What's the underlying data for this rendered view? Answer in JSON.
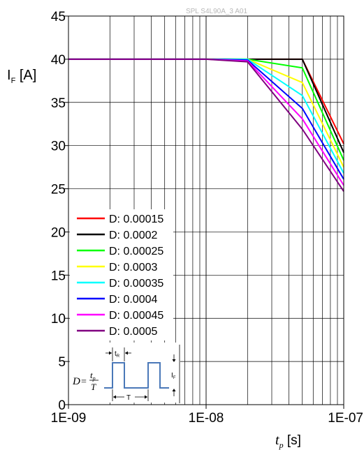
{
  "watermark": "SPL S4L90A_3 A01",
  "chart_data": {
    "type": "line",
    "xscale": "log",
    "xlim": [
      1e-09,
      1e-07
    ],
    "ylim": [
      0,
      45
    ],
    "grid": true,
    "x_tick_labels": [
      "1E-09",
      "1E-08",
      "1E-07"
    ],
    "x_tick_values": [
      1e-09,
      1e-08,
      1e-07
    ],
    "y_ticks": [
      0,
      5,
      10,
      15,
      20,
      25,
      30,
      35,
      40,
      45
    ],
    "ylabel": {
      "main": "I",
      "sub": "F",
      "unit": " [A]"
    },
    "xlabel": {
      "main": "t",
      "sub": "p",
      "unit": " [s]"
    },
    "legend_position": "left",
    "x": [
      1e-09,
      1e-08,
      2e-08,
      5e-08,
      1e-07
    ],
    "series": [
      {
        "name": "D: 0.00015",
        "color": "#ff0000",
        "values": [
          40,
          40,
          40,
          40.0,
          30.2
        ]
      },
      {
        "name": "D: 0.0002",
        "color": "#000000",
        "values": [
          40,
          40,
          40,
          40.0,
          29.2
        ]
      },
      {
        "name": "D: 0.00025",
        "color": "#00ff00",
        "values": [
          40,
          40,
          40,
          39.0,
          28.3
        ]
      },
      {
        "name": "D: 0.0003",
        "color": "#ffff00",
        "values": [
          40,
          40,
          40,
          37.3,
          27.5
        ]
      },
      {
        "name": "D: 0.00035",
        "color": "#00ffff",
        "values": [
          40,
          40,
          40,
          35.8,
          26.8
        ]
      },
      {
        "name": "D: 0.0004",
        "color": "#0000ff",
        "values": [
          40,
          40,
          39.9,
          34.3,
          26.1
        ]
      },
      {
        "name": "D: 0.00045",
        "color": "#ff00ff",
        "values": [
          40,
          40,
          39.8,
          33.1,
          25.4
        ]
      },
      {
        "name": "D: 0.0005",
        "color": "#800080",
        "values": [
          40,
          40,
          39.7,
          31.9,
          24.7
        ]
      }
    ]
  },
  "inset": {
    "formula_lhs": "D",
    "formula_eq": "=",
    "numerator_main": "t",
    "numerator_sub": "p",
    "denominator": "T",
    "period_label": "T",
    "pulse_label_main": "t",
    "pulse_label_sub": "R",
    "current_label_main": "I",
    "current_label_sub": "F",
    "pulse_color": "#4a78b8"
  }
}
